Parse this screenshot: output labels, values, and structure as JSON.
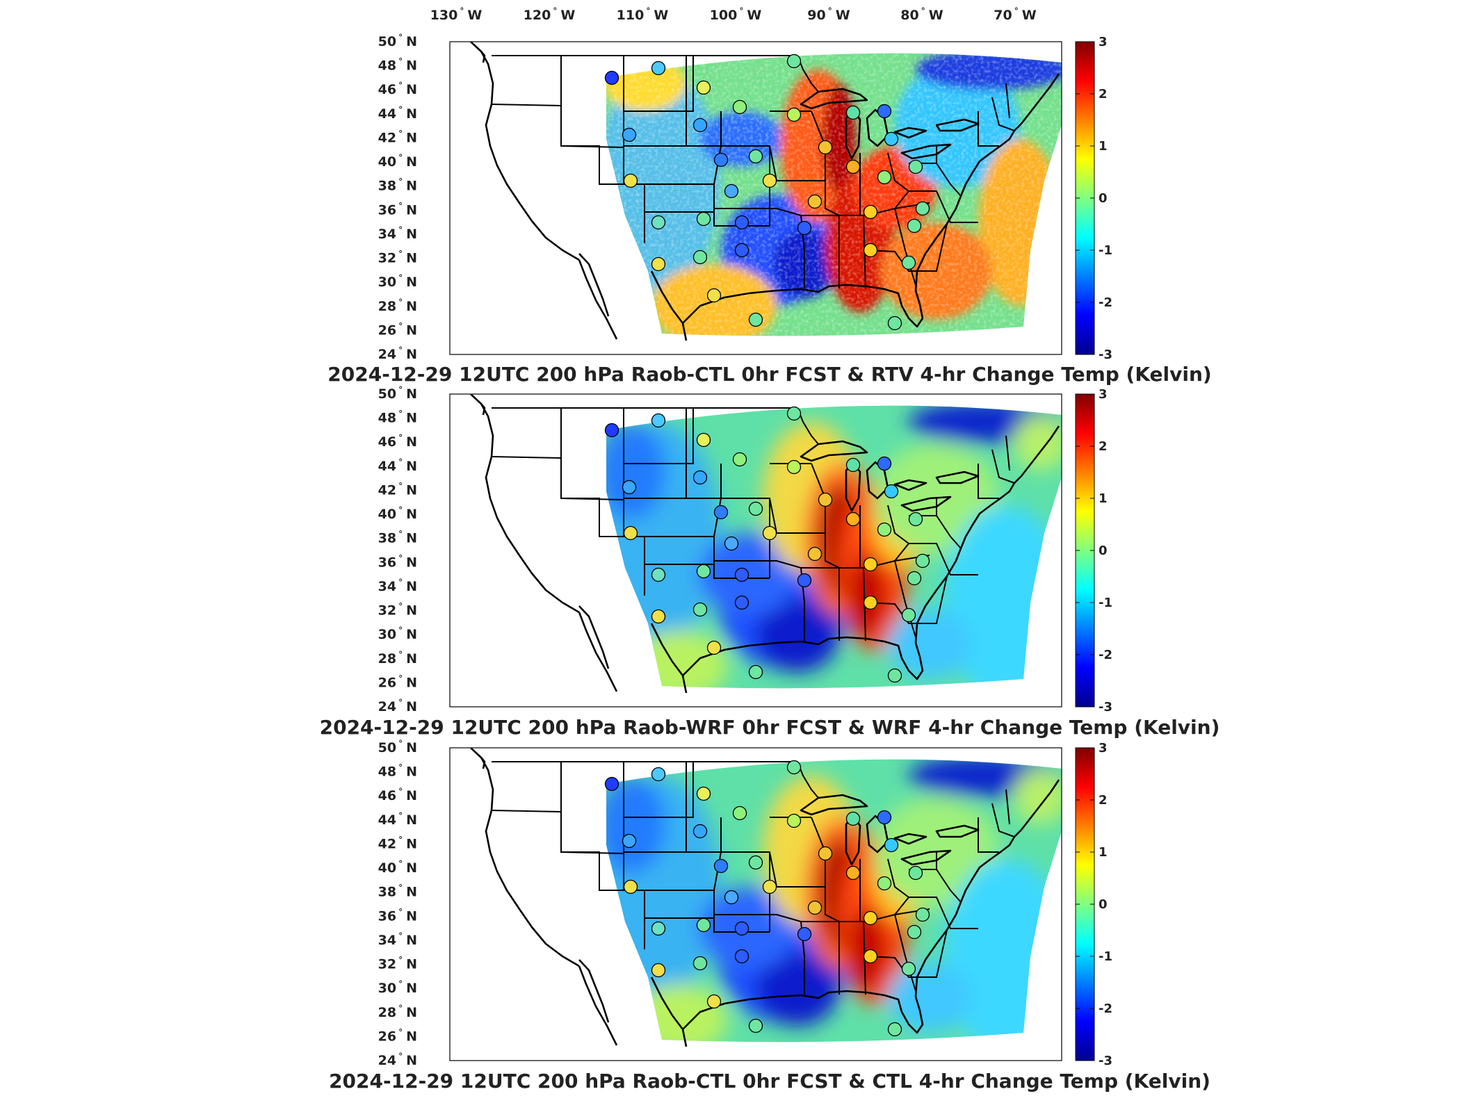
{
  "figure": {
    "lon_labels": [
      {
        "deg": "130",
        "hemi": "W"
      },
      {
        "deg": "120",
        "hemi": "W"
      },
      {
        "deg": "110",
        "hemi": "W"
      },
      {
        "deg": "100",
        "hemi": "W"
      },
      {
        "deg": "90",
        "hemi": "W"
      },
      {
        "deg": "80",
        "hemi": "W"
      },
      {
        "deg": "70",
        "hemi": "W"
      }
    ],
    "lat_labels": [
      {
        "deg": "50",
        "hemi": "N"
      },
      {
        "deg": "48",
        "hemi": "N"
      },
      {
        "deg": "46",
        "hemi": "N"
      },
      {
        "deg": "44",
        "hemi": "N"
      },
      {
        "deg": "42",
        "hemi": "N"
      },
      {
        "deg": "40",
        "hemi": "N"
      },
      {
        "deg": "38",
        "hemi": "N"
      },
      {
        "deg": "36",
        "hemi": "N"
      },
      {
        "deg": "34",
        "hemi": "N"
      },
      {
        "deg": "32",
        "hemi": "N"
      },
      {
        "deg": "30",
        "hemi": "N"
      },
      {
        "deg": "28",
        "hemi": "N"
      },
      {
        "deg": "26",
        "hemi": "N"
      },
      {
        "deg": "24",
        "hemi": "N"
      }
    ],
    "degree_symbol": "°",
    "colorbar": {
      "ticks": [
        "3",
        "2",
        "1",
        "0",
        "-1",
        "-2",
        "-3"
      ],
      "range": [
        -3,
        3
      ],
      "colormap": [
        "#00008f",
        "#0000ff",
        "#00ffff",
        "#80ff80",
        "#ffff00",
        "#ff0000",
        "#800000"
      ]
    }
  },
  "panels": [
    {
      "title": "2024-12-29 12UTC 200 hPa Raob-CTL 0hr FCST & RTV 4-hr Change Temp (Kelvin)",
      "style": "noisy"
    },
    {
      "title": "2024-12-29 12UTC 200 hPa Raob-WRF 0hr FCST & WRF 4-hr Change Temp (Kelvin)",
      "style": "smooth"
    },
    {
      "title": "2024-12-29 12UTC 200 hPa Raob-CTL 0hr FCST & CTL 4-hr Change Temp (Kelvin)",
      "style": "smooth"
    }
  ]
}
